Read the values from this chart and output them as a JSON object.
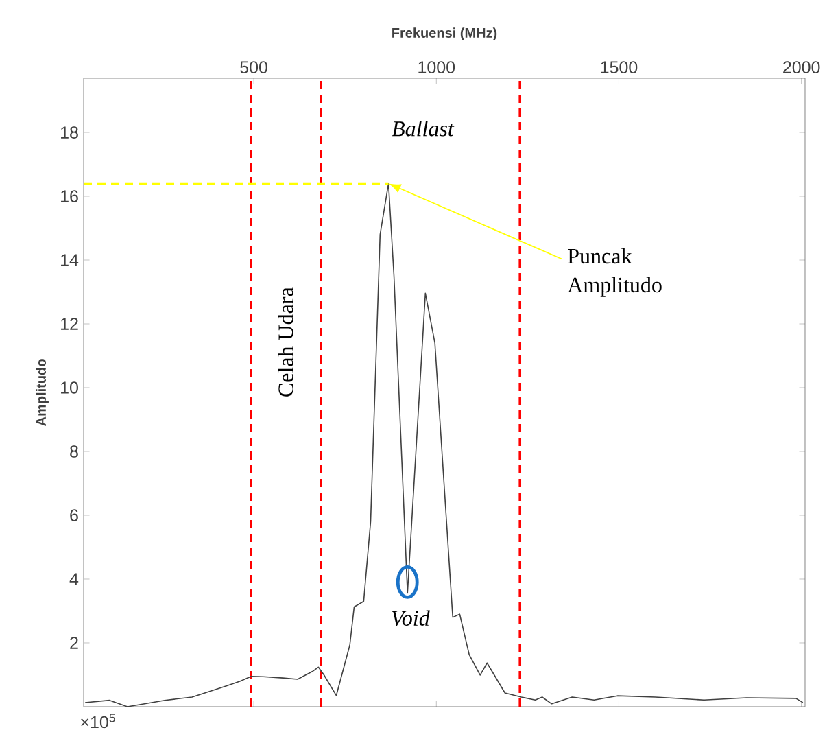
{
  "chart_data": {
    "type": "line",
    "xlabel": "Frekuensi (MHz)",
    "ylabel": "Amplitudo",
    "xlim": [
      34,
      2010
    ],
    "ylim": [
      0,
      19.7
    ],
    "xticks": [
      500,
      1000,
      1500,
      2000
    ],
    "yticks": [
      2,
      4,
      6,
      8,
      10,
      12,
      14,
      16,
      18
    ],
    "grid": false,
    "series": [
      {
        "color": "#404040",
        "x": [
          38,
          105,
          154,
          256,
          331,
          425,
          463,
          493,
          526,
          580,
          620,
          660,
          677,
          692,
          726,
          763,
          775,
          801,
          820,
          846,
          869,
          884,
          921,
          970,
          996,
          1045,
          1064,
          1090,
          1120,
          1139,
          1188,
          1233,
          1271,
          1290,
          1316,
          1372,
          1432,
          1496,
          1600,
          1733,
          1850,
          1985,
          2004
        ],
        "values": [
          0.13,
          0.2,
          0.0,
          0.2,
          0.3,
          0.65,
          0.8,
          0.95,
          0.94,
          0.9,
          0.86,
          1.1,
          1.24,
          1.0,
          0.35,
          1.93,
          3.13,
          3.3,
          5.8,
          14.8,
          16.4,
          13.5,
          3.56,
          12.96,
          11.4,
          2.8,
          2.9,
          1.63,
          0.99,
          1.37,
          0.43,
          0.3,
          0.21,
          0.3,
          0.09,
          0.3,
          0.21,
          0.34,
          0.3,
          0.21,
          0.28,
          0.26,
          0.13
        ]
      },
      {
        "type": "line",
        "color": "#ffff00",
        "line_style": "dashed",
        "x": [
          34,
          869
        ],
        "values": [
          16.4,
          16.4
        ]
      }
    ],
    "ref_lines": [
      {
        "axis": "x",
        "value": 492,
        "color": "#ff0000",
        "line_style": "dashed"
      },
      {
        "axis": "x",
        "value": 684,
        "color": "#ff0000",
        "line_style": "dashed"
      },
      {
        "axis": "x",
        "value": 1229,
        "color": "#ff0000",
        "line_style": "dashed"
      }
    ],
    "annotations": [
      {
        "text": "Puncak Amplitudo",
        "x": 869,
        "y": 16.4
      },
      {
        "text": "Void",
        "x": 921,
        "y": 3.56
      },
      "×10$^{5}$",
      "Celah Udara",
      "Ballast"
    ]
  }
}
